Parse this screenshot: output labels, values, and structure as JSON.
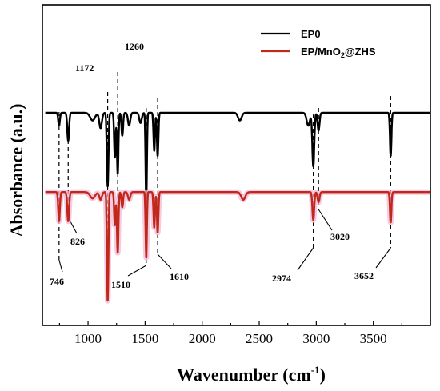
{
  "chart_data": {
    "type": "line",
    "title": "",
    "xlabel": "Wavenumber (cm",
    "xlabel_sup": "-1",
    "xlabel_close": ")",
    "ylabel": "Absorbance (a.u.)",
    "xlim": [
      600,
      4000
    ],
    "xticks": [
      1000,
      1500,
      2000,
      2500,
      3000,
      3500
    ],
    "yticks_shown": false,
    "legend_position": "top-right",
    "series": [
      {
        "name": "EP0",
        "color": "#000000",
        "baseline": 0,
        "peaks": [
          {
            "x": 746,
            "depth": 0.1,
            "width": 10
          },
          {
            "x": 826,
            "depth": 0.22,
            "width": 11
          },
          {
            "x": 1040,
            "depth": 0.06,
            "width": 30
          },
          {
            "x": 1110,
            "depth": 0.12,
            "width": 16
          },
          {
            "x": 1172,
            "depth": 0.58,
            "width": 10
          },
          {
            "x": 1235,
            "depth": 0.35,
            "width": 9
          },
          {
            "x": 1260,
            "depth": 0.48,
            "width": 9
          },
          {
            "x": 1300,
            "depth": 0.18,
            "width": 10
          },
          {
            "x": 1360,
            "depth": 0.1,
            "width": 14
          },
          {
            "x": 1460,
            "depth": 0.08,
            "width": 15
          },
          {
            "x": 1510,
            "depth": 0.72,
            "width": 8
          },
          {
            "x": 1580,
            "depth": 0.3,
            "width": 9
          },
          {
            "x": 1610,
            "depth": 0.34,
            "width": 9
          },
          {
            "x": 2330,
            "depth": 0.06,
            "width": 22
          },
          {
            "x": 2930,
            "depth": 0.1,
            "width": 20
          },
          {
            "x": 2974,
            "depth": 0.42,
            "width": 12
          },
          {
            "x": 3020,
            "depth": 0.14,
            "width": 12
          },
          {
            "x": 3652,
            "depth": 0.34,
            "width": 9
          }
        ]
      },
      {
        "name": "EP/MnO",
        "name_sub": "2",
        "name_tail": "@ZHS",
        "color": "#c0281c",
        "baseline": -0.62,
        "peaks": [
          {
            "x": 746,
            "depth": 0.23,
            "width": 10
          },
          {
            "x": 826,
            "depth": 0.23,
            "width": 11
          },
          {
            "x": 1040,
            "depth": 0.05,
            "width": 30
          },
          {
            "x": 1110,
            "depth": 0.06,
            "width": 16
          },
          {
            "x": 1172,
            "depth": 0.86,
            "width": 9
          },
          {
            "x": 1235,
            "depth": 0.26,
            "width": 9
          },
          {
            "x": 1260,
            "depth": 0.48,
            "width": 9
          },
          {
            "x": 1300,
            "depth": 0.12,
            "width": 10
          },
          {
            "x": 1360,
            "depth": 0.06,
            "width": 14
          },
          {
            "x": 1510,
            "depth": 0.52,
            "width": 8
          },
          {
            "x": 1580,
            "depth": 0.28,
            "width": 9
          },
          {
            "x": 1610,
            "depth": 0.32,
            "width": 9
          },
          {
            "x": 2360,
            "depth": 0.06,
            "width": 25
          },
          {
            "x": 2974,
            "depth": 0.22,
            "width": 11
          },
          {
            "x": 3020,
            "depth": 0.08,
            "width": 12
          },
          {
            "x": 3652,
            "depth": 0.24,
            "width": 9
          }
        ]
      }
    ],
    "annotations": [
      "746",
      "826",
      "1172",
      "1260",
      "1510",
      "1610",
      "2974",
      "3020",
      "3652"
    ]
  }
}
